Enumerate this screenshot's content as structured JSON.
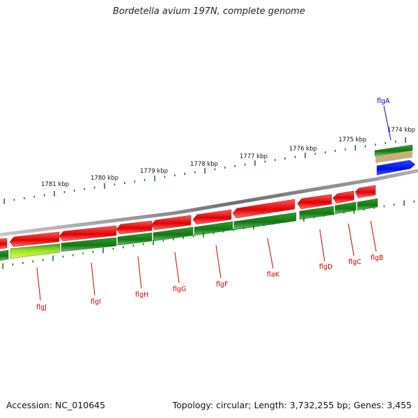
{
  "title": "Bordetella avium 197N, complete genome",
  "footer": {
    "accession": "Accession: NC_010645",
    "summary": "Topology: circular; Length: 3,732,255 bp; Genes: 3,455"
  },
  "colors": {
    "backbone": "#8c8c8c",
    "forward_gene": "#1a8a1a",
    "reverse_gene": "#e60000",
    "forward_cds_highlight": "#c6ff33",
    "blue_gene": "#0010e0",
    "tan_feature": "#c8b07a",
    "label_red": "#cc0000",
    "label_blue": "#0000cc",
    "tick": "#1a7a1a"
  },
  "kbp_labels": [
    {
      "kbp": 1774,
      "text": "1774 kbp"
    },
    {
      "kbp": 1775,
      "text": "1775 kbp"
    },
    {
      "kbp": 1776,
      "text": "1776 kbp"
    },
    {
      "kbp": 1777,
      "text": "1777 kbp"
    },
    {
      "kbp": 1778,
      "text": "1778 kbp"
    },
    {
      "kbp": 1779,
      "text": "1779 kbp"
    },
    {
      "kbp": 1780,
      "text": "1780 kbp"
    },
    {
      "kbp": 1781,
      "text": "1781 kbp"
    }
  ],
  "gene_labels": [
    {
      "name": "flgA",
      "color": "blue"
    },
    {
      "name": "flgB",
      "color": "red"
    },
    {
      "name": "flgC",
      "color": "red"
    },
    {
      "name": "flgD",
      "color": "red"
    },
    {
      "name": "flaK",
      "color": "red"
    },
    {
      "name": "flgF",
      "color": "red"
    },
    {
      "name": "flgG",
      "color": "red"
    },
    {
      "name": "flgH",
      "color": "red"
    },
    {
      "name": "flgI",
      "color": "red"
    },
    {
      "name": "flgJ",
      "color": "red"
    }
  ]
}
